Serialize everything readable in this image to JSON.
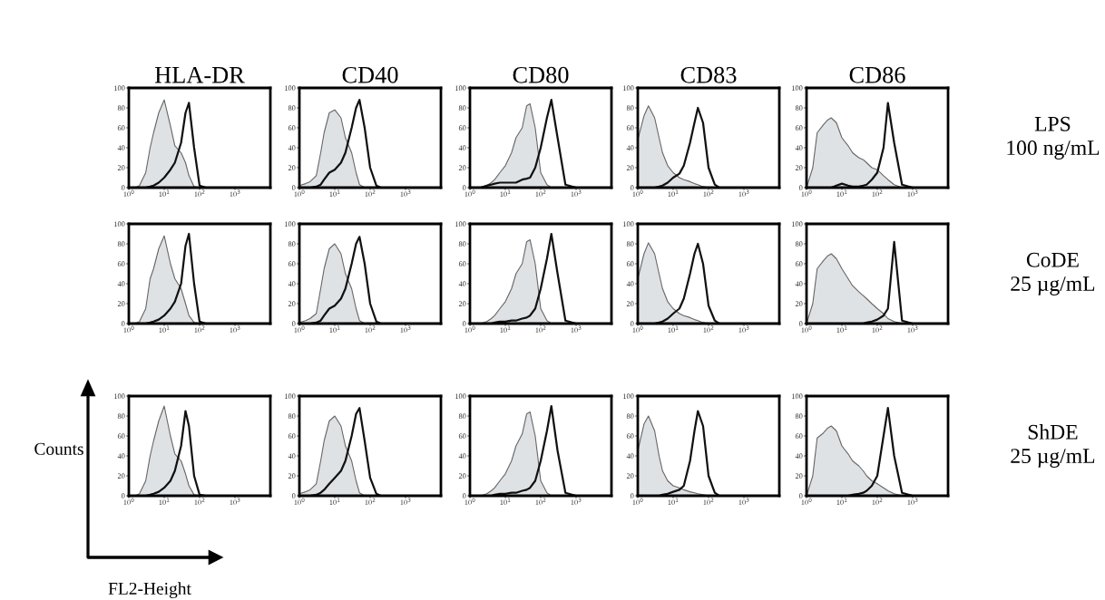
{
  "chart_data": [
    {
      "type": "line",
      "title": "HLA-DR",
      "log": "x",
      "xlim": [
        1,
        10000
      ],
      "ylim": [
        0,
        100
      ],
      "xticks": [
        {
          "value": 1,
          "label": "10$^{0}$"
        },
        {
          "value": 10,
          "label": "10$^{1}$"
        },
        {
          "value": 100,
          "label": "10$^{2}$"
        },
        {
          "value": 1000,
          "label": "10$^{3}$"
        }
      ],
      "yticks": [
        0,
        20,
        40,
        60,
        80,
        100
      ],
      "x": [
        1,
        1.5,
        2,
        3,
        4,
        5,
        7,
        10,
        15,
        20,
        30,
        40,
        50,
        70,
        100,
        150,
        200,
        300,
        500,
        1000,
        10000
      ],
      "series": [
        {
          "type": "area",
          "color": "#dfe2e5",
          "values": [
            0,
            0,
            2,
            15,
            40,
            55,
            75,
            88,
            62,
            42,
            35,
            25,
            12,
            1,
            0,
            0,
            0,
            0,
            0,
            0,
            0
          ]
        },
        {
          "color": "#111111",
          "values": [
            0,
            0,
            0,
            0,
            1,
            2,
            5,
            10,
            18,
            25,
            45,
            75,
            85,
            40,
            2,
            0,
            0,
            0,
            0,
            0,
            0
          ]
        }
      ]
    },
    {
      "type": "line",
      "title": "CD40",
      "log": "x",
      "xlim": [
        1,
        10000
      ],
      "ylim": [
        0,
        100
      ],
      "xticks": [
        {
          "value": 1,
          "label": "10$^{0}$"
        },
        {
          "value": 10,
          "label": "10$^{1}$"
        },
        {
          "value": 100,
          "label": "10$^{2}$"
        },
        {
          "value": 1000,
          "label": "10$^{3}$"
        }
      ],
      "yticks": [
        0,
        20,
        40,
        60,
        80,
        100
      ],
      "x": [
        1,
        1.5,
        2,
        3,
        4,
        5,
        7,
        10,
        15,
        20,
        30,
        40,
        50,
        70,
        100,
        150,
        200,
        300,
        500,
        1000,
        10000
      ],
      "series": [
        {
          "type": "area",
          "color": "#dfe2e5",
          "values": [
            2,
            4,
            6,
            12,
            35,
            55,
            75,
            78,
            70,
            50,
            35,
            15,
            3,
            0,
            0,
            0,
            0,
            0,
            0,
            0,
            0
          ]
        },
        {
          "color": "#111111",
          "values": [
            0,
            0,
            0,
            1,
            3,
            8,
            15,
            18,
            25,
            35,
            60,
            80,
            88,
            60,
            20,
            2,
            0,
            0,
            0,
            0,
            0
          ]
        }
      ]
    },
    {
      "type": "line",
      "title": "CD80",
      "log": "x",
      "xlim": [
        1,
        10000
      ],
      "ylim": [
        0,
        100
      ],
      "xticks": [
        {
          "value": 1,
          "label": "10$^{0}$"
        },
        {
          "value": 10,
          "label": "10$^{1}$"
        },
        {
          "value": 100,
          "label": "10$^{2}$"
        },
        {
          "value": 1000,
          "label": "10$^{3}$"
        }
      ],
      "yticks": [
        0,
        20,
        40,
        60,
        80,
        100
      ],
      "x": [
        1,
        1.5,
        2,
        3,
        4,
        5,
        7,
        10,
        15,
        20,
        30,
        40,
        50,
        70,
        100,
        150,
        200,
        300,
        500,
        1000,
        10000
      ],
      "series": [
        {
          "type": "area",
          "color": "#dfe2e5",
          "values": [
            0,
            0,
            0,
            2,
            5,
            8,
            15,
            22,
            35,
            50,
            60,
            82,
            84,
            60,
            15,
            3,
            0,
            0,
            0,
            0,
            0
          ]
        },
        {
          "color": "#111111",
          "values": [
            0,
            0,
            0,
            2,
            3,
            4,
            5,
            5,
            5,
            5,
            8,
            9,
            10,
            20,
            40,
            70,
            88,
            50,
            3,
            0,
            0
          ]
        }
      ]
    },
    {
      "type": "line",
      "title": "CD83",
      "log": "x",
      "xlim": [
        1,
        10000
      ],
      "ylim": [
        0,
        100
      ],
      "xticks": [
        {
          "value": 1,
          "label": "10$^{0}$"
        },
        {
          "value": 10,
          "label": "10$^{1}$"
        },
        {
          "value": 100,
          "label": "10$^{2}$"
        },
        {
          "value": 1000,
          "label": "10$^{3}$"
        }
      ],
      "yticks": [
        0,
        20,
        40,
        60,
        80,
        100
      ],
      "x": [
        1,
        1.5,
        2,
        3,
        4,
        5,
        7,
        10,
        15,
        20,
        30,
        40,
        50,
        70,
        100,
        150,
        200,
        300,
        500,
        1000,
        10000
      ],
      "series": [
        {
          "type": "area",
          "color": "#dfe2e5",
          "values": [
            48,
            72,
            82,
            70,
            50,
            35,
            22,
            15,
            10,
            8,
            6,
            4,
            3,
            1,
            0,
            0,
            0,
            0,
            0,
            0,
            0
          ]
        },
        {
          "color": "#111111",
          "values": [
            0,
            0,
            0,
            0,
            1,
            2,
            5,
            10,
            14,
            22,
            45,
            65,
            80,
            65,
            20,
            3,
            0,
            0,
            0,
            0,
            0
          ]
        }
      ]
    },
    {
      "type": "line",
      "title": "CD86",
      "annotations": [
        "LPS\n100 ng/mL"
      ],
      "log": "x",
      "xlim": [
        1,
        10000
      ],
      "ylim": [
        0,
        100
      ],
      "xticks": [
        {
          "value": 1,
          "label": "10$^{0}$"
        },
        {
          "value": 10,
          "label": "10$^{1}$"
        },
        {
          "value": 100,
          "label": "10$^{2}$"
        },
        {
          "value": 1000,
          "label": "10$^{3}$"
        }
      ],
      "yticks": [
        0,
        20,
        40,
        60,
        80,
        100
      ],
      "x": [
        1,
        1.5,
        2,
        3,
        4,
        5,
        7,
        10,
        15,
        20,
        30,
        40,
        50,
        70,
        100,
        150,
        200,
        300,
        500,
        1000,
        10000
      ],
      "series": [
        {
          "type": "area",
          "color": "#dfe2e5",
          "values": [
            0,
            20,
            55,
            63,
            68,
            70,
            65,
            50,
            42,
            35,
            30,
            28,
            25,
            20,
            18,
            12,
            8,
            3,
            0,
            0,
            0
          ]
        },
        {
          "color": "#111111",
          "values": [
            0,
            0,
            0,
            0,
            0,
            0,
            2,
            4,
            2,
            1,
            1,
            2,
            3,
            8,
            15,
            40,
            85,
            45,
            3,
            0,
            0
          ]
        }
      ]
    },
    {
      "type": "line",
      "log": "x",
      "xlim": [
        1,
        10000
      ],
      "ylim": [
        0,
        100
      ],
      "xticks": [
        {
          "value": 1,
          "label": "10$^{0}$"
        },
        {
          "value": 10,
          "label": "10$^{1}$"
        },
        {
          "value": 100,
          "label": "10$^{2}$"
        },
        {
          "value": 1000,
          "label": "10$^{3}$"
        }
      ],
      "yticks": [
        0,
        20,
        40,
        60,
        80,
        100
      ],
      "x": [
        1,
        1.5,
        2,
        3,
        4,
        5,
        7,
        10,
        15,
        20,
        30,
        40,
        50,
        70,
        100,
        150,
        200,
        300,
        500,
        1000,
        10000
      ],
      "series": [
        {
          "type": "area",
          "color": "#dfe2e5",
          "values": [
            0,
            0,
            2,
            15,
            45,
            55,
            75,
            88,
            60,
            45,
            35,
            20,
            8,
            1,
            0,
            0,
            0,
            0,
            0,
            0,
            0
          ]
        },
        {
          "color": "#111111",
          "values": [
            0,
            0,
            0,
            0,
            1,
            2,
            4,
            8,
            15,
            22,
            40,
            78,
            90,
            40,
            2,
            0,
            0,
            0,
            0,
            0,
            0
          ]
        }
      ]
    },
    {
      "type": "line",
      "log": "x",
      "xlim": [
        1,
        10000
      ],
      "ylim": [
        0,
        100
      ],
      "xticks": [
        {
          "value": 1,
          "label": "10$^{0}$"
        },
        {
          "value": 10,
          "label": "10$^{1}$"
        },
        {
          "value": 100,
          "label": "10$^{2}$"
        },
        {
          "value": 1000,
          "label": "10$^{3}$"
        }
      ],
      "yticks": [
        0,
        20,
        40,
        60,
        80,
        100
      ],
      "x": [
        1,
        1.5,
        2,
        3,
        4,
        5,
        7,
        10,
        15,
        20,
        30,
        40,
        50,
        70,
        100,
        150,
        200,
        300,
        500,
        1000,
        10000
      ],
      "series": [
        {
          "type": "area",
          "color": "#dfe2e5",
          "values": [
            1,
            3,
            5,
            10,
            35,
            55,
            75,
            80,
            70,
            50,
            35,
            15,
            3,
            0,
            0,
            0,
            0,
            0,
            0,
            0,
            0
          ]
        },
        {
          "color": "#111111",
          "values": [
            0,
            0,
            0,
            1,
            3,
            8,
            15,
            18,
            25,
            35,
            60,
            80,
            87,
            60,
            20,
            2,
            0,
            0,
            0,
            0,
            0
          ]
        }
      ]
    },
    {
      "type": "line",
      "log": "x",
      "xlim": [
        1,
        10000
      ],
      "ylim": [
        0,
        100
      ],
      "xticks": [
        {
          "value": 1,
          "label": "10$^{0}$"
        },
        {
          "value": 10,
          "label": "10$^{1}$"
        },
        {
          "value": 100,
          "label": "10$^{2}$"
        },
        {
          "value": 1000,
          "label": "10$^{3}$"
        }
      ],
      "yticks": [
        0,
        20,
        40,
        60,
        80,
        100
      ],
      "x": [
        1,
        1.5,
        2,
        3,
        4,
        5,
        7,
        10,
        15,
        20,
        30,
        40,
        50,
        70,
        100,
        150,
        200,
        300,
        500,
        1000,
        10000
      ],
      "series": [
        {
          "type": "area",
          "color": "#dfe2e5",
          "values": [
            0,
            0,
            0,
            2,
            5,
            8,
            15,
            22,
            35,
            50,
            60,
            82,
            84,
            60,
            15,
            3,
            0,
            0,
            0,
            0,
            0
          ]
        },
        {
          "color": "#111111",
          "values": [
            0,
            0,
            0,
            0,
            0,
            1,
            2,
            2,
            3,
            3,
            5,
            6,
            8,
            15,
            35,
            65,
            90,
            50,
            3,
            0,
            0
          ]
        }
      ]
    },
    {
      "type": "line",
      "log": "x",
      "xlim": [
        1,
        10000
      ],
      "ylim": [
        0,
        100
      ],
      "xticks": [
        {
          "value": 1,
          "label": "10$^{0}$"
        },
        {
          "value": 10,
          "label": "10$^{1}$"
        },
        {
          "value": 100,
          "label": "10$^{2}$"
        },
        {
          "value": 1000,
          "label": "10$^{3}$"
        }
      ],
      "yticks": [
        0,
        20,
        40,
        60,
        80,
        100
      ],
      "x": [
        1,
        1.5,
        2,
        3,
        4,
        5,
        7,
        10,
        15,
        20,
        30,
        40,
        50,
        70,
        100,
        150,
        200,
        300,
        500,
        1000,
        10000
      ],
      "series": [
        {
          "type": "area",
          "color": "#dfe2e5",
          "values": [
            45,
            70,
            81,
            70,
            50,
            35,
            22,
            15,
            10,
            8,
            6,
            4,
            3,
            1,
            0,
            0,
            0,
            0,
            0,
            0,
            0
          ]
        },
        {
          "color": "#111111",
          "values": [
            0,
            0,
            0,
            0,
            1,
            2,
            5,
            10,
            15,
            25,
            50,
            70,
            80,
            60,
            18,
            3,
            0,
            0,
            0,
            0,
            0
          ]
        }
      ]
    },
    {
      "type": "line",
      "annotations": [
        "CoDE\n25 µg/mL"
      ],
      "log": "x",
      "xlim": [
        1,
        10000
      ],
      "ylim": [
        0,
        100
      ],
      "xticks": [
        {
          "value": 1,
          "label": "10$^{0}$"
        },
        {
          "value": 10,
          "label": "10$^{1}$"
        },
        {
          "value": 100,
          "label": "10$^{2}$"
        },
        {
          "value": 1000,
          "label": "10$^{3}$"
        }
      ],
      "yticks": [
        0,
        20,
        40,
        60,
        80,
        100
      ],
      "x": [
        1,
        1.5,
        2,
        3,
        4,
        5,
        7,
        10,
        15,
        20,
        30,
        40,
        50,
        70,
        100,
        150,
        200,
        300,
        500,
        1000,
        10000
      ],
      "series": [
        {
          "type": "area",
          "color": "#dfe2e5",
          "values": [
            0,
            20,
            55,
            63,
            68,
            70,
            65,
            55,
            45,
            38,
            32,
            28,
            25,
            20,
            15,
            10,
            5,
            2,
            0,
            0,
            0
          ]
        },
        {
          "color": "#111111",
          "values": [
            0,
            0,
            0,
            0,
            0,
            0,
            0,
            0,
            0,
            0,
            0,
            0,
            1,
            2,
            4,
            8,
            15,
            82,
            3,
            0,
            0
          ]
        }
      ]
    },
    {
      "type": "line",
      "xlabel": "FL2-Height",
      "ylabel": "Counts",
      "log": "x",
      "xlim": [
        1,
        10000
      ],
      "ylim": [
        0,
        100
      ],
      "xticks": [
        {
          "value": 1,
          "label": "10$^{0}$"
        },
        {
          "value": 10,
          "label": "10$^{1}$"
        },
        {
          "value": 100,
          "label": "10$^{2}$"
        },
        {
          "value": 1000,
          "label": "10$^{3}$"
        }
      ],
      "yticks": [
        0,
        20,
        40,
        60,
        80,
        100
      ],
      "x": [
        1,
        1.5,
        2,
        3,
        4,
        5,
        7,
        10,
        15,
        20,
        30,
        40,
        50,
        70,
        100,
        150,
        200,
        300,
        500,
        1000,
        10000
      ],
      "series": [
        {
          "type": "area",
          "color": "#dfe2e5",
          "values": [
            0,
            0,
            2,
            15,
            40,
            55,
            75,
            90,
            60,
            42,
            35,
            22,
            10,
            1,
            0,
            0,
            0,
            0,
            0,
            0,
            0
          ]
        },
        {
          "color": "#111111",
          "values": [
            0,
            0,
            0,
            0,
            1,
            2,
            4,
            8,
            15,
            25,
            50,
            85,
            70,
            20,
            1,
            0,
            0,
            0,
            0,
            0,
            0
          ]
        }
      ]
    },
    {
      "type": "line",
      "log": "x",
      "xlim": [
        1,
        10000
      ],
      "ylim": [
        0,
        100
      ],
      "xticks": [
        {
          "value": 1,
          "label": "10$^{0}$"
        },
        {
          "value": 10,
          "label": "10$^{1}$"
        },
        {
          "value": 100,
          "label": "10$^{2}$"
        },
        {
          "value": 1000,
          "label": "10$^{3}$"
        }
      ],
      "yticks": [
        0,
        20,
        40,
        60,
        80,
        100
      ],
      "x": [
        1,
        1.5,
        2,
        3,
        4,
        5,
        7,
        10,
        15,
        20,
        30,
        40,
        50,
        70,
        100,
        150,
        200,
        300,
        500,
        1000,
        10000
      ],
      "series": [
        {
          "type": "area",
          "color": "#dfe2e5",
          "values": [
            2,
            4,
            6,
            12,
            35,
            55,
            75,
            80,
            70,
            50,
            35,
            15,
            3,
            0,
            0,
            0,
            0,
            0,
            0,
            0,
            0
          ]
        },
        {
          "color": "#111111",
          "values": [
            0,
            0,
            0,
            1,
            3,
            6,
            12,
            18,
            25,
            35,
            60,
            82,
            88,
            55,
            18,
            2,
            0,
            0,
            0,
            0,
            0
          ]
        }
      ]
    },
    {
      "type": "line",
      "log": "x",
      "xlim": [
        1,
        10000
      ],
      "ylim": [
        0,
        100
      ],
      "xticks": [
        {
          "value": 1,
          "label": "10$^{0}$"
        },
        {
          "value": 10,
          "label": "10$^{1}$"
        },
        {
          "value": 100,
          "label": "10$^{2}$"
        },
        {
          "value": 1000,
          "label": "10$^{3}$"
        }
      ],
      "yticks": [
        0,
        20,
        40,
        60,
        80,
        100
      ],
      "x": [
        1,
        1.5,
        2,
        3,
        4,
        5,
        7,
        10,
        15,
        20,
        30,
        40,
        50,
        70,
        100,
        150,
        200,
        300,
        500,
        1000,
        10000
      ],
      "series": [
        {
          "type": "area",
          "color": "#dfe2e5",
          "values": [
            0,
            0,
            0,
            2,
            5,
            8,
            15,
            22,
            35,
            50,
            62,
            82,
            84,
            60,
            15,
            3,
            0,
            0,
            0,
            0,
            0
          ]
        },
        {
          "color": "#111111",
          "values": [
            0,
            0,
            0,
            0,
            0,
            1,
            2,
            2,
            3,
            3,
            5,
            6,
            8,
            15,
            35,
            65,
            90,
            45,
            3,
            0,
            0
          ]
        }
      ]
    },
    {
      "type": "line",
      "log": "x",
      "xlim": [
        1,
        10000
      ],
      "ylim": [
        0,
        100
      ],
      "xticks": [
        {
          "value": 1,
          "label": "10$^{0}$"
        },
        {
          "value": 10,
          "label": "10$^{1}$"
        },
        {
          "value": 100,
          "label": "10$^{2}$"
        },
        {
          "value": 1000,
          "label": "10$^{3}$"
        }
      ],
      "yticks": [
        0,
        20,
        40,
        60,
        80,
        100
      ],
      "x": [
        1,
        1.5,
        2,
        3,
        4,
        5,
        7,
        10,
        15,
        20,
        30,
        40,
        50,
        70,
        100,
        150,
        200,
        300,
        500,
        1000,
        10000
      ],
      "series": [
        {
          "type": "area",
          "color": "#dfe2e5",
          "values": [
            45,
            72,
            80,
            65,
            40,
            25,
            15,
            10,
            8,
            6,
            4,
            3,
            2,
            1,
            0,
            0,
            0,
            0,
            0,
            0,
            0
          ]
        },
        {
          "color": "#111111",
          "values": [
            0,
            0,
            0,
            0,
            0,
            1,
            2,
            4,
            6,
            10,
            35,
            65,
            85,
            70,
            20,
            3,
            0,
            0,
            0,
            0,
            0
          ]
        }
      ]
    },
    {
      "type": "line",
      "annotations": [
        "ShDE\n25 µg/mL"
      ],
      "log": "x",
      "xlim": [
        1,
        10000
      ],
      "ylim": [
        0,
        100
      ],
      "xticks": [
        {
          "value": 1,
          "label": "10$^{0}$"
        },
        {
          "value": 10,
          "label": "10$^{1}$"
        },
        {
          "value": 100,
          "label": "10$^{2}$"
        },
        {
          "value": 1000,
          "label": "10$^{3}$"
        }
      ],
      "yticks": [
        0,
        20,
        40,
        60,
        80,
        100
      ],
      "x": [
        1,
        1.5,
        2,
        3,
        4,
        5,
        7,
        10,
        15,
        20,
        30,
        40,
        50,
        70,
        100,
        150,
        200,
        300,
        500,
        1000,
        10000
      ],
      "series": [
        {
          "type": "area",
          "color": "#dfe2e5",
          "values": [
            0,
            20,
            58,
            63,
            68,
            70,
            65,
            50,
            42,
            35,
            30,
            25,
            20,
            15,
            12,
            8,
            5,
            2,
            0,
            0,
            0
          ]
        },
        {
          "color": "#111111",
          "values": [
            0,
            0,
            0,
            0,
            0,
            0,
            0,
            0,
            0,
            1,
            2,
            3,
            5,
            10,
            20,
            60,
            88,
            40,
            3,
            0,
            0
          ]
        }
      ]
    }
  ]
}
